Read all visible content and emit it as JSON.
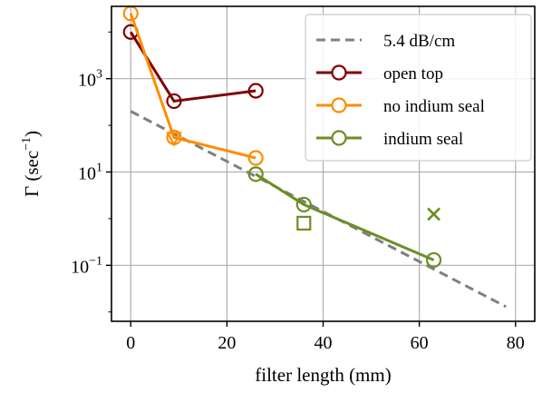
{
  "chart_data": {
    "type": "line",
    "title": "",
    "xlabel": "filter length (mm)",
    "ylabel": "Γ  (sec",
    "ylabel_superscript": "−1",
    "ylabel_close": ")",
    "xlim": [
      -4,
      84
    ],
    "ylim_log10": [
      -2.2,
      4.55
    ],
    "y_scale": "log",
    "grid": true,
    "legend_placement": "top-right",
    "x_ticks": [
      {
        "value": 0,
        "label": "0"
      },
      {
        "value": 20,
        "label": "20"
      },
      {
        "value": 40,
        "label": "40"
      },
      {
        "value": 60,
        "label": "60"
      },
      {
        "value": 80,
        "label": "80"
      }
    ],
    "y_ticks": [
      {
        "value": 0.1,
        "base": "10",
        "exp": "−1"
      },
      {
        "value": 10,
        "base": "10",
        "exp": "1"
      },
      {
        "value": 1000,
        "base": "10",
        "exp": "3"
      }
    ],
    "series": [
      {
        "name": "5.4 dB/cm",
        "style": "dashed",
        "color": "#808080",
        "x": [
          0,
          78
        ],
        "y": [
          200,
          0.013
        ]
      },
      {
        "name": "open top",
        "style": "line-marker",
        "color": "#800000",
        "x": [
          0,
          9,
          26
        ],
        "y": [
          10000,
          330,
          550
        ]
      },
      {
        "name": "no indium seal",
        "style": "line-marker",
        "color": "#ff8c00",
        "x": [
          0,
          9,
          26
        ],
        "y": [
          25000,
          55,
          20
        ]
      },
      {
        "name": "indium seal",
        "style": "line-marker",
        "color": "#6b8e23",
        "x": [
          26,
          36,
          63
        ],
        "y": [
          9,
          2,
          0.13
        ]
      }
    ],
    "extra_markers": [
      {
        "shape": "triangle-down",
        "color": "#ff8c00",
        "x": 9,
        "y": 55
      },
      {
        "shape": "square",
        "color": "#6b8e23",
        "x": 36,
        "y": 0.8
      },
      {
        "shape": "x",
        "color": "#6b8e23",
        "x": 63,
        "y": 1.25
      }
    ]
  }
}
